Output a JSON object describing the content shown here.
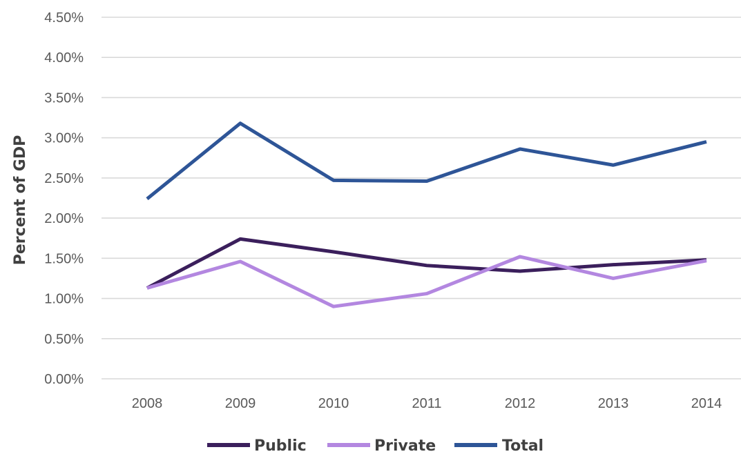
{
  "chart_data": {
    "type": "line",
    "title": "",
    "xlabel": "",
    "ylabel": "Percent of GDP",
    "categories": [
      "2008",
      "2009",
      "2010",
      "2011",
      "2012",
      "2013",
      "2014"
    ],
    "ylim": [
      0,
      4.5
    ],
    "yticks": [
      0,
      0.5,
      1.0,
      1.5,
      2.0,
      2.5,
      3.0,
      3.5,
      4.0,
      4.5
    ],
    "ytick_labels": [
      "0.00%",
      "0.50%",
      "1.00%",
      "1.50%",
      "2.00%",
      "2.50%",
      "3.00%",
      "3.50%",
      "4.00%",
      "4.50%"
    ],
    "grid": true,
    "legend_position": "bottom",
    "series": [
      {
        "name": "Public",
        "color": "#3b1f5c",
        "values": [
          1.13,
          1.74,
          1.58,
          1.41,
          1.34,
          1.42,
          1.48
        ]
      },
      {
        "name": "Private",
        "color": "#b387e0",
        "values": [
          1.13,
          1.46,
          0.9,
          1.06,
          1.52,
          1.25,
          1.47
        ]
      },
      {
        "name": "Total",
        "color": "#2e5597",
        "values": [
          2.24,
          3.18,
          2.47,
          2.46,
          2.86,
          2.66,
          2.95
        ]
      }
    ]
  }
}
